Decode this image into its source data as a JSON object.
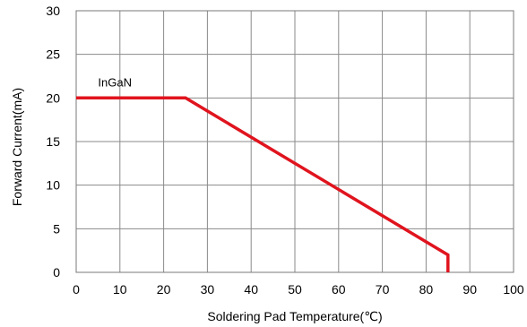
{
  "chart_data": {
    "type": "line",
    "title": "",
    "xlabel": "Soldering Pad Temperature(℃)",
    "ylabel": "Forward Current(mA)",
    "xlim": [
      0,
      100
    ],
    "ylim": [
      0,
      30
    ],
    "x_ticks": [
      0,
      10,
      20,
      30,
      40,
      50,
      60,
      70,
      80,
      90,
      100
    ],
    "y_ticks": [
      0,
      5,
      10,
      15,
      20,
      25,
      30
    ],
    "grid": true,
    "series": [
      {
        "name": "InGaN",
        "color": "#e0141e",
        "x": [
          0,
          25,
          85,
          85
        ],
        "y": [
          20,
          20,
          2,
          0
        ]
      }
    ],
    "annotations": [
      {
        "text": "InGaN",
        "x": 5,
        "y": 21.3
      }
    ]
  }
}
